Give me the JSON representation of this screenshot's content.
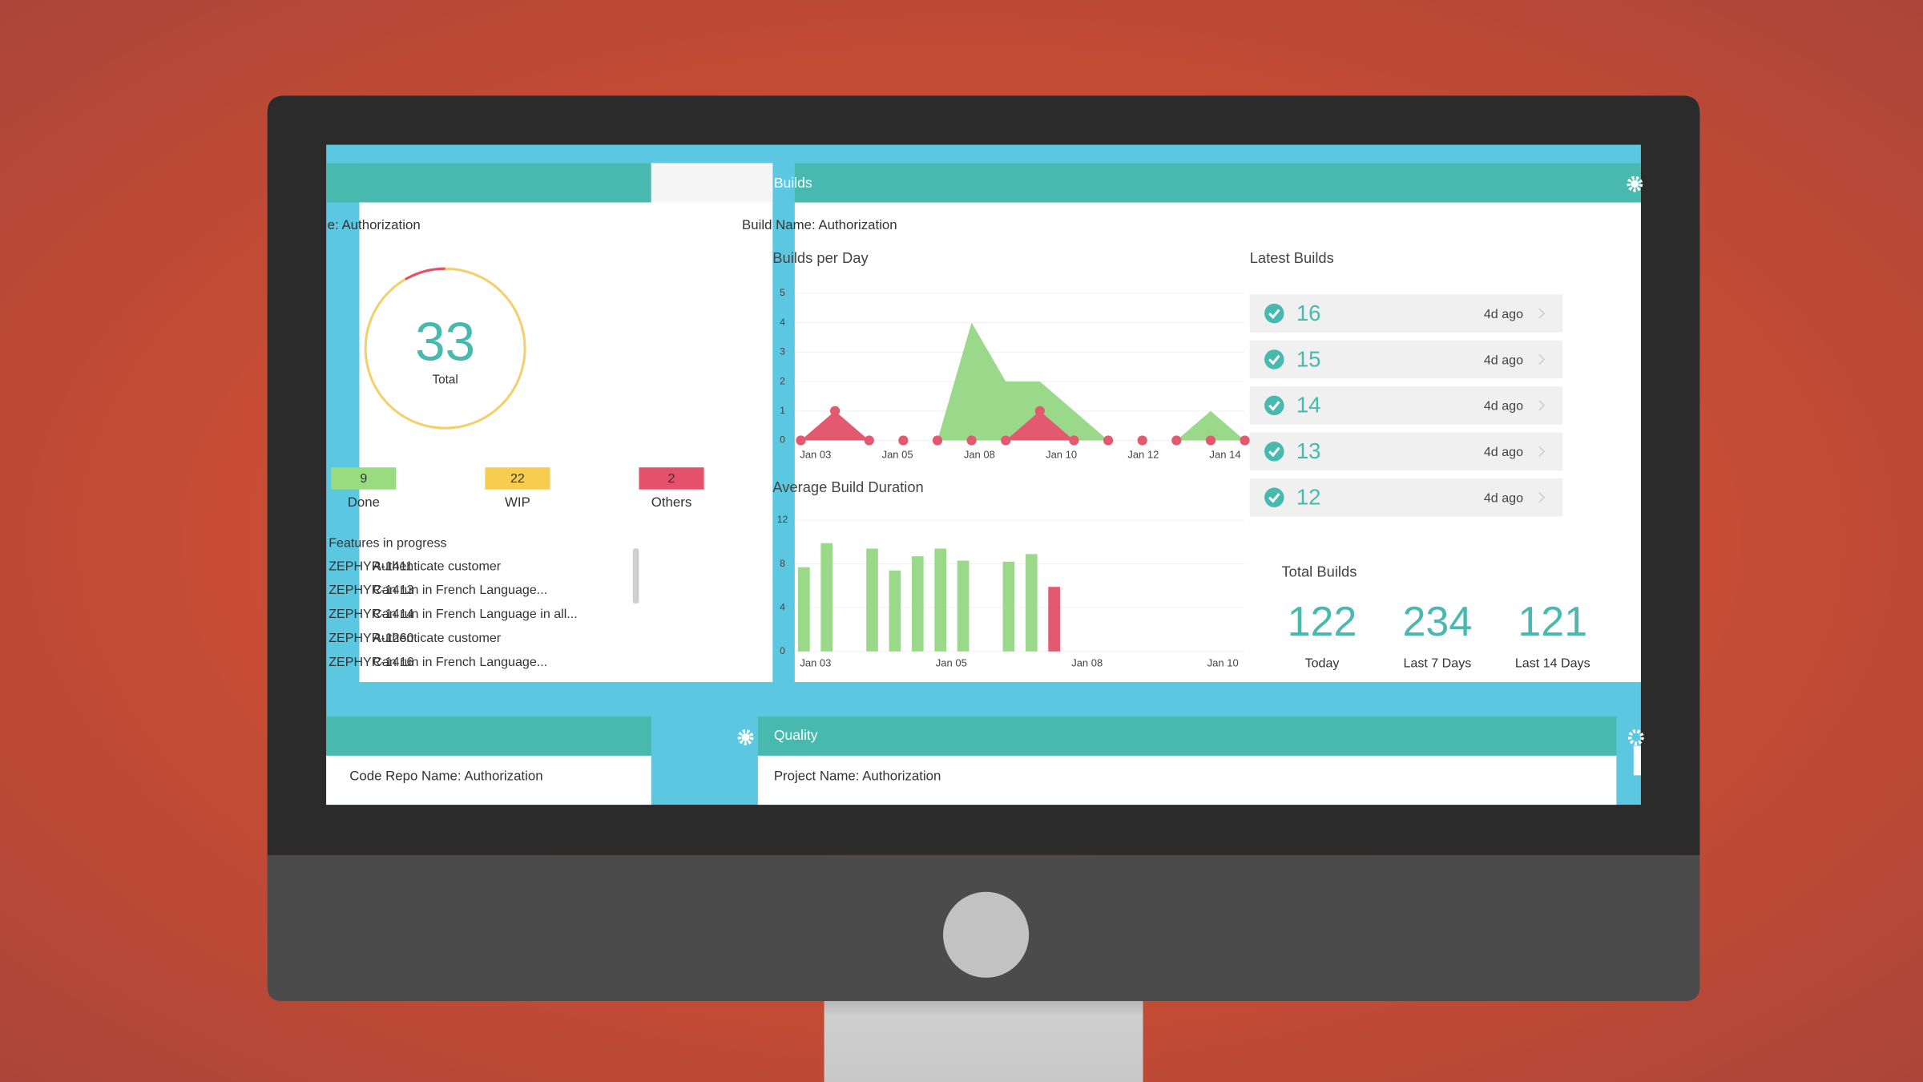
{
  "screen": {
    "features_panel": {
      "build_name": "e: Authorization",
      "total": 33,
      "total_label": "Total",
      "statuses": [
        {
          "label": "Done",
          "value": 9,
          "color": "#98dc7f"
        },
        {
          "label": "WIP",
          "value": 22,
          "color": "#f6cd4f"
        },
        {
          "label": "Others",
          "value": 2,
          "color": "#e5506a"
        }
      ],
      "list_title": "Features in progress",
      "features": [
        {
          "id": "ZEPHYR-1411",
          "name": "Authenticate customer"
        },
        {
          "id": "ZEPHYR-1413",
          "name": "Can run in French Language..."
        },
        {
          "id": "ZEPHYR-1414",
          "name": "Can run in French Language in all..."
        },
        {
          "id": "ZEPHYR-1260",
          "name": "Authenticate customer"
        },
        {
          "id": "ZEPHYR-1416",
          "name": "Can run in French Language..."
        }
      ]
    },
    "builds_panel": {
      "title": "Builds",
      "build_name": "Build Name: Authorization",
      "builds_per_day": {
        "type": "area",
        "title": "Builds per Day",
        "x_labels": [
          "Jan 03",
          "Jan 05",
          "Jan 08",
          "Jan 10",
          "Jan 12",
          "Jan 14"
        ],
        "ylim": [
          0,
          5
        ],
        "yticks": [
          0,
          1,
          2,
          3,
          4,
          5
        ],
        "series": [
          {
            "color": "#9bd98a",
            "values": [
              0,
              0,
              0,
              0,
              0,
              4,
              2,
              2,
              1,
              0,
              0,
              0,
              1,
              0
            ]
          },
          {
            "color": "#e35a70",
            "values": [
              0,
              1,
              0,
              0,
              0,
              0,
              0,
              1,
              0,
              0,
              0,
              0,
              0,
              0
            ]
          }
        ]
      },
      "average_build_duration": {
        "type": "bar",
        "title": "Average Build Duration",
        "x_labels": [
          "Jan 03",
          "Jan 05",
          "Jan 08",
          "Jan 10"
        ],
        "ylim": [
          0,
          12
        ],
        "yticks": [
          0,
          4,
          8,
          12
        ],
        "series": [
          {
            "color": "#9bd98a",
            "values": [
              7.7,
              9.9,
              null,
              9.4,
              7.4,
              8.7,
              9.4,
              8.3,
              null,
              8.2,
              8.9,
              null
            ]
          },
          {
            "color": "#e35a70",
            "values": [
              null,
              null,
              null,
              null,
              null,
              null,
              null,
              null,
              null,
              null,
              null,
              5.9
            ]
          }
        ]
      },
      "latest_builds": {
        "title": "Latest Builds",
        "items": [
          {
            "number": 16,
            "age": "4d ago"
          },
          {
            "number": 15,
            "age": "4d ago"
          },
          {
            "number": 14,
            "age": "4d ago"
          },
          {
            "number": 13,
            "age": "4d ago"
          },
          {
            "number": 12,
            "age": "4d ago"
          }
        ]
      },
      "total_builds": {
        "title": "Total Builds",
        "stats": [
          {
            "value": 122,
            "label": "Today"
          },
          {
            "value": 234,
            "label": "Last 7 Days"
          },
          {
            "value": 121,
            "label": "Last 14 Days"
          }
        ]
      }
    },
    "code_repo_panel": {
      "text": "Code Repo Name: Authorization"
    },
    "quality_panel": {
      "title": "Quality",
      "text": "Project Name: Authorization"
    }
  }
}
